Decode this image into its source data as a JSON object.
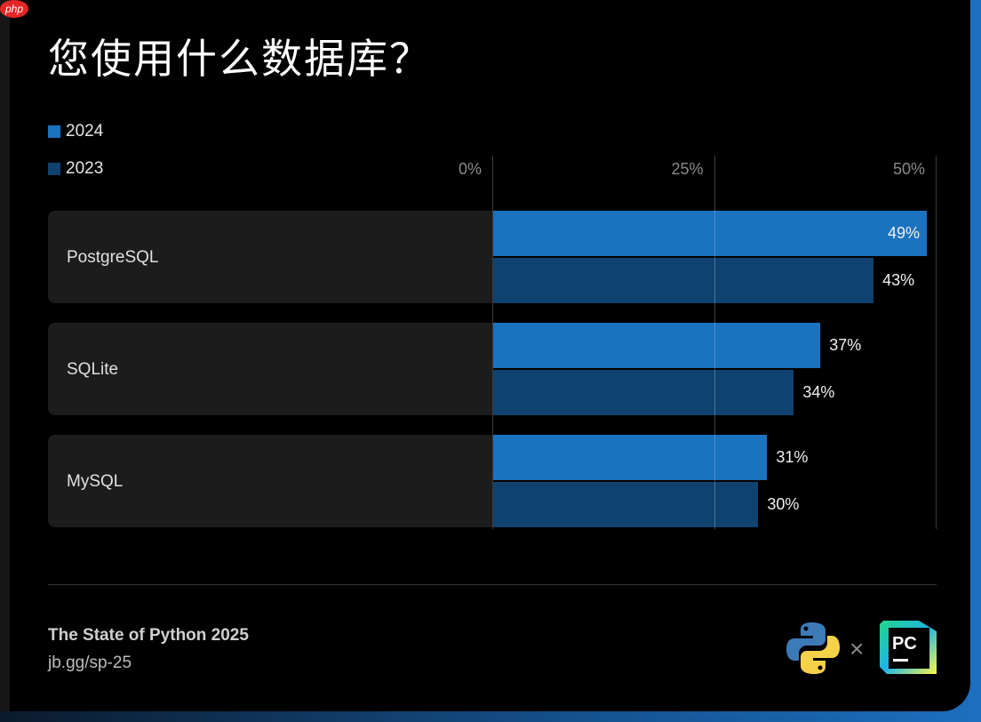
{
  "watermark": "php",
  "title": "您使用什么数据库？",
  "chart_data": {
    "type": "bar",
    "orientation": "horizontal",
    "title": "您使用什么数据库？",
    "categories": [
      "PostgreSQL",
      "SQLite",
      "MySQL"
    ],
    "series": [
      {
        "name": "2024",
        "values": [
          49,
          37,
          31
        ],
        "color": "#1b72bf"
      },
      {
        "name": "2023",
        "values": [
          43,
          34,
          30
        ],
        "color": "#0f426f"
      }
    ],
    "xlim": [
      0,
      50
    ],
    "ticks": [
      "0%",
      "25%",
      "50%"
    ],
    "grid": true,
    "legend": "top-left",
    "value_suffix": "%"
  },
  "footer": {
    "title": "The State of Python 2025",
    "link": "jb.gg/sp-25",
    "times": "×",
    "pc_logo": "PC"
  }
}
